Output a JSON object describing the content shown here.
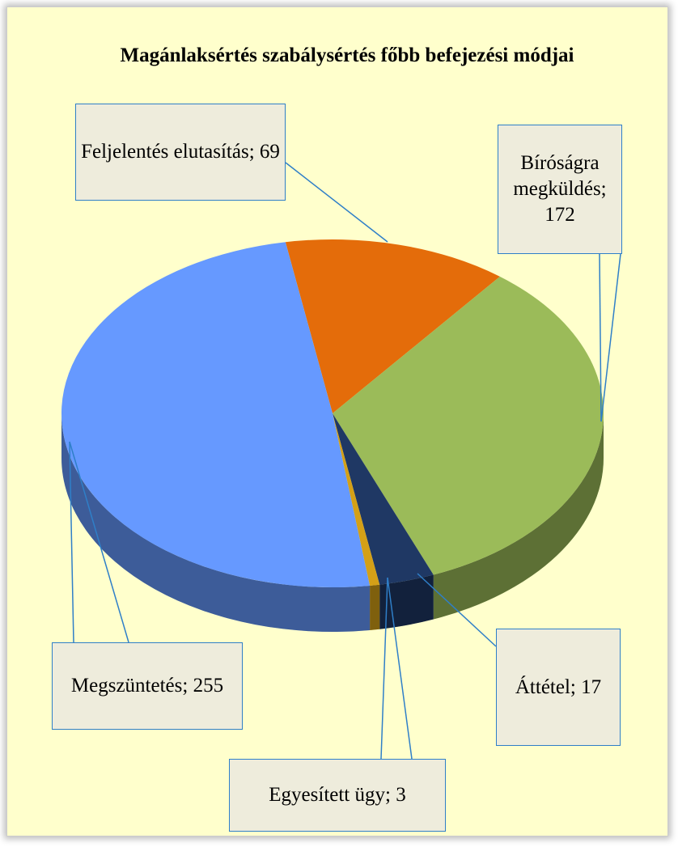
{
  "chart_data": {
    "type": "pie",
    "title": "Magánlaksértés szabálysértés főbb befejezési módjai",
    "values": [
      69,
      172,
      17,
      3,
      255
    ],
    "value_labels": [
      "Feljelentés elutasítás; 69",
      "Bíróságra megküldés; 172",
      "Áttétel; 17",
      "Egyesített ügy; 3",
      "Megszüntetés; 255"
    ],
    "colors": [
      "#e46c0a",
      "#9bbb59",
      "#1f3864",
      "#d4a017",
      "#6699ff"
    ]
  }
}
